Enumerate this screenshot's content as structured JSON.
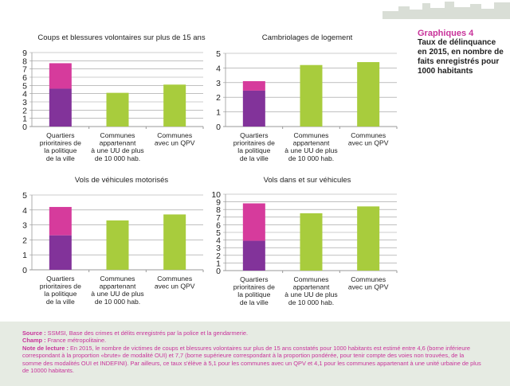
{
  "side_title": {
    "label": "Graphiques 4",
    "text": "Taux de délinquance en 2015, en nombre de faits enregistrés pour 1000 habitants"
  },
  "colors": {
    "lower": "#82339a",
    "upper": "#d63b9c",
    "other": "#a8cc3d",
    "grid": "#9a9a9a",
    "accent": "#c8339a"
  },
  "chart_data": [
    {
      "type": "bar",
      "stacked_first": true,
      "title": "Coups et blessures volontaires sur plus de 15 ans",
      "categories": [
        [
          "Quartiers",
          "prioritaires de",
          "la politique",
          "de la ville"
        ],
        [
          "Communes",
          "appartenant",
          "à une UU de plus",
          "de 10 000 hab."
        ],
        [
          "Communes",
          "avec un QPV"
        ]
      ],
      "lower": 4.6,
      "upper": 7.7,
      "values": [
        7.7,
        4.1,
        5.1
      ],
      "ylim": [
        0,
        9
      ],
      "ticks": [
        0,
        1,
        2,
        3,
        4,
        5,
        6,
        7,
        8,
        9
      ],
      "grid": true
    },
    {
      "type": "bar",
      "stacked_first": true,
      "title": "Cambriolages de logement",
      "categories": [
        [
          "Quartiers",
          "prioritaires de",
          "la politique",
          "de la ville"
        ],
        [
          "Communes",
          "appartenant",
          "à une UU de plus",
          "de 10 000 hab."
        ],
        [
          "Communes",
          "avec un QPV"
        ]
      ],
      "lower": 2.45,
      "upper": 3.1,
      "values": [
        3.1,
        4.2,
        4.4
      ],
      "ylim": [
        0,
        5
      ],
      "ticks": [
        0,
        1,
        2,
        3,
        4,
        5
      ],
      "grid": true
    },
    {
      "type": "bar",
      "stacked_first": true,
      "title": "Vols de véhicules motorisés",
      "categories": [
        [
          "Quartiers",
          "prioritaires de",
          "la politique",
          "de la ville"
        ],
        [
          "Communes",
          "appartenant",
          "à une UU de plus",
          "de 10 000 hab."
        ],
        [
          "Communes",
          "avec un QPV"
        ]
      ],
      "lower": 2.3,
      "upper": 4.2,
      "values": [
        4.2,
        3.3,
        3.7
      ],
      "ylim": [
        0,
        5
      ],
      "ticks": [
        0,
        1,
        2,
        3,
        4,
        5
      ],
      "grid": true
    },
    {
      "type": "bar",
      "stacked_first": true,
      "title": "Vols dans et sur véhicules",
      "categories": [
        [
          "Quartiers",
          "prioritaires de",
          "la politique",
          "de la ville"
        ],
        [
          "Communes",
          "appartenant",
          "à une UU de plus",
          "de 10 000 hab."
        ],
        [
          "Communes",
          "avec un QPV"
        ]
      ],
      "lower": 3.9,
      "upper": 8.8,
      "values": [
        8.8,
        7.5,
        8.4
      ],
      "ylim": [
        0,
        10
      ],
      "ticks": [
        0,
        1,
        2,
        3,
        4,
        5,
        6,
        7,
        8,
        9,
        10
      ],
      "grid": true
    }
  ],
  "footer": {
    "source_label": "Source :",
    "source": "SSMSI, Base des crimes et délits enregistrés par la police et la gendarmerie.",
    "champ_label": "Champ :",
    "champ": "France métropolitaine.",
    "note_label": "Note de lecture :",
    "note": "En 2015, le nombre de victimes de coups et blessures volontaires sur plus de 15 ans constatés pour 1000 habitants est estimé entre 4,6 (borne inférieure correspondant à la proportion «brute» de modalité OUI) et 7,7 (borne supérieure correspondant à la proportion pondérée, pour tenir compte des voies non trouvées, de la somme des modalités OUI et INDEFINI). Par ailleurs, ce taux s'élève à 5,1 pour les communes avec un QPV et 4,1 pour les communes appartenant à une unité urbaine de plus de 10000 habitants."
  }
}
